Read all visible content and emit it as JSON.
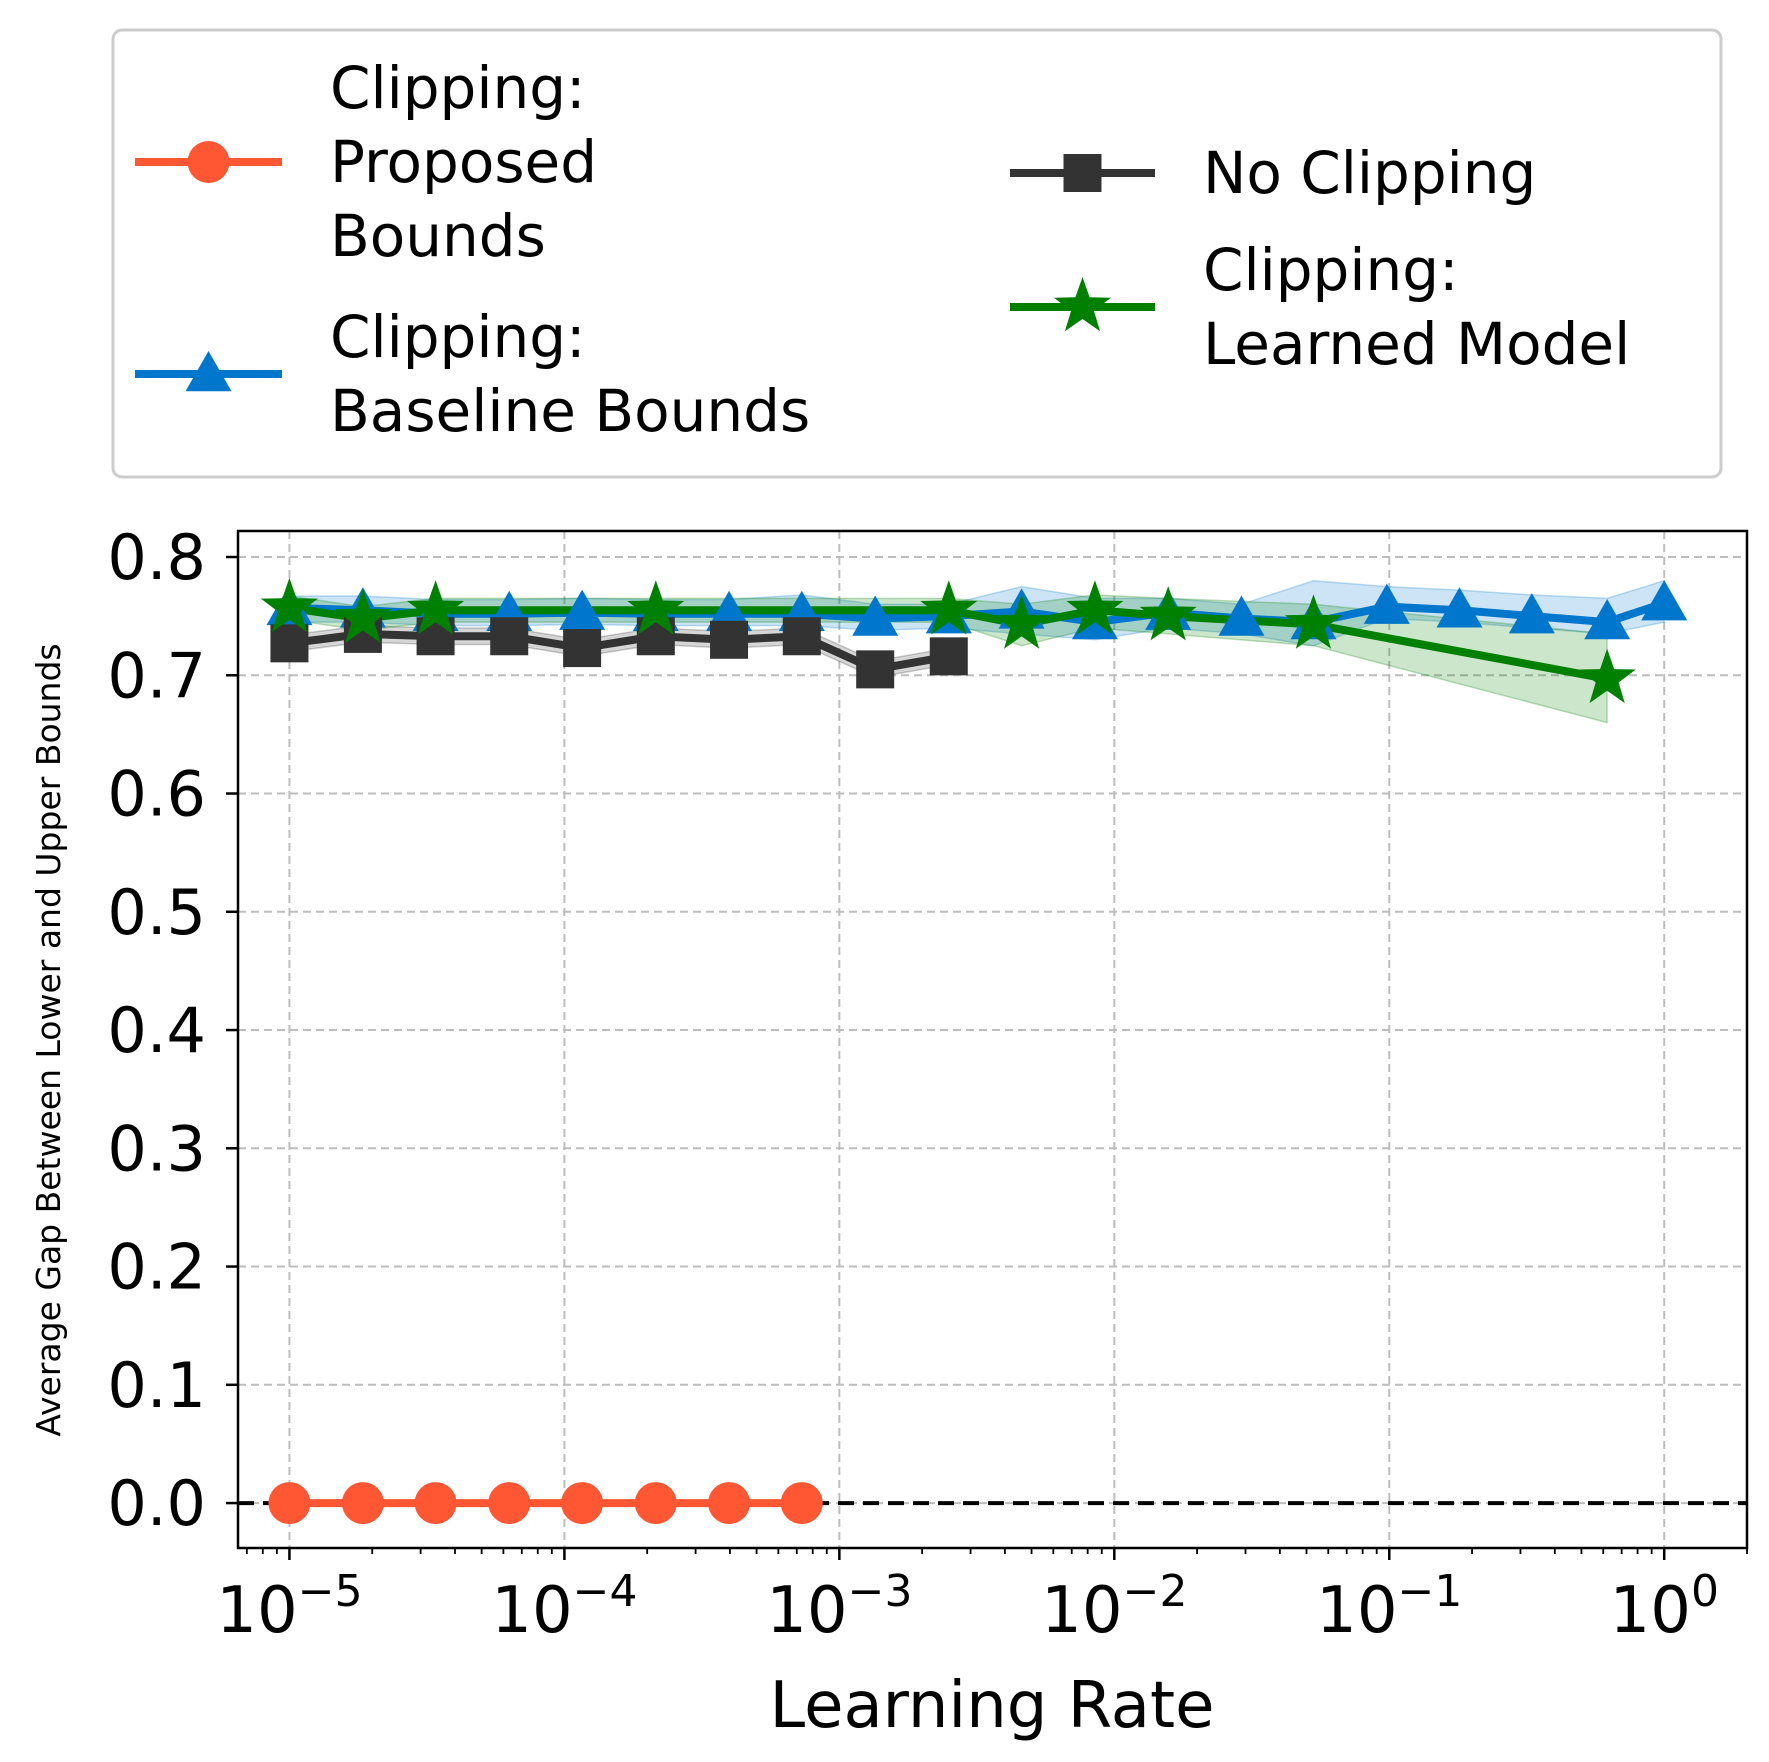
{
  "chart_data": {
    "type": "line",
    "title": "",
    "xlabel": "Learning Rate",
    "ylabel": "Average Gap Between Lower and Upper Bounds",
    "xscale": "log",
    "xlim": [
      6.5e-06,
      2.0
    ],
    "ylim": [
      -0.038,
      0.822
    ],
    "grid": true,
    "legend_position": "top (outside plot, 2 columns)",
    "x_tick_labels": [
      {
        "value": 1e-05,
        "base": "10",
        "exp": "−5"
      },
      {
        "value": 0.0001,
        "base": "10",
        "exp": "−4"
      },
      {
        "value": 0.001,
        "base": "10",
        "exp": "−3"
      },
      {
        "value": 0.01,
        "base": "10",
        "exp": "−2"
      },
      {
        "value": 0.1,
        "base": "10",
        "exp": "−1"
      },
      {
        "value": 1,
        "base": "10",
        "exp": "0"
      }
    ],
    "y_ticks": [
      0.0,
      0.1,
      0.2,
      0.3,
      0.4,
      0.5,
      0.6,
      0.7,
      0.8
    ],
    "y_tick_labels": [
      "0.0",
      "0.1",
      "0.2",
      "0.3",
      "0.4",
      "0.5",
      "0.6",
      "0.7",
      "0.8"
    ],
    "reference_line": {
      "y": 0.0,
      "style": "dashed",
      "color": "#000000"
    },
    "series": [
      {
        "name": "Clipping: Proposed Bounds",
        "legend_lines": [
          "Clipping:",
          "Proposed",
          "Bounds"
        ],
        "color": "#FF5733",
        "marker": "circle",
        "x": [
          1e-05,
          1.85e-05,
          3.4e-05,
          6.3e-05,
          0.000116,
          0.000215,
          0.000397,
          0.00073
        ],
        "y": [
          0.0,
          0.0,
          0.0,
          0.0,
          0.0,
          0.0,
          0.0,
          0.0
        ]
      },
      {
        "name": "Clipping: Baseline Bounds",
        "legend_lines": [
          "Clipping:",
          "Baseline Bounds"
        ],
        "color": "#0077CC",
        "marker": "triangle",
        "x": [
          1e-05,
          1.85e-05,
          3.4e-05,
          6.3e-05,
          0.000116,
          0.000215,
          0.000397,
          0.00073,
          0.00135,
          0.0025,
          0.0046,
          0.0085,
          0.0157,
          0.029,
          0.053,
          0.098,
          0.18,
          0.33,
          0.62,
          1.0
        ],
        "y": [
          0.757,
          0.755,
          0.752,
          0.752,
          0.753,
          0.752,
          0.752,
          0.752,
          0.748,
          0.75,
          0.754,
          0.745,
          0.753,
          0.748,
          0.745,
          0.758,
          0.755,
          0.75,
          0.745,
          0.761
        ],
        "band_low": [
          0.745,
          0.745,
          0.742,
          0.742,
          0.743,
          0.742,
          0.742,
          0.742,
          0.738,
          0.74,
          0.735,
          0.73,
          0.74,
          0.735,
          0.725,
          0.748,
          0.745,
          0.74,
          0.735,
          0.745
        ],
        "band_high": [
          0.767,
          0.767,
          0.764,
          0.764,
          0.765,
          0.764,
          0.764,
          0.768,
          0.76,
          0.76,
          0.775,
          0.765,
          0.765,
          0.76,
          0.78,
          0.775,
          0.772,
          0.768,
          0.765,
          0.78
        ]
      },
      {
        "name": "No Clipping",
        "legend_lines": [
          "No Clipping"
        ],
        "color": "#333333",
        "marker": "square",
        "x": [
          1e-05,
          1.85e-05,
          3.4e-05,
          6.3e-05,
          0.000116,
          0.000215,
          0.000397,
          0.00073,
          0.00135,
          0.0025
        ],
        "y": [
          0.727,
          0.735,
          0.733,
          0.733,
          0.723,
          0.733,
          0.73,
          0.733,
          0.705,
          0.716
        ],
        "band_low": [
          0.72,
          0.728,
          0.726,
          0.726,
          0.716,
          0.726,
          0.723,
          0.726,
          0.698,
          0.709
        ],
        "band_high": [
          0.734,
          0.742,
          0.74,
          0.74,
          0.73,
          0.74,
          0.737,
          0.74,
          0.712,
          0.723
        ]
      },
      {
        "name": "Clipping: Learned Model",
        "legend_lines": [
          "Clipping:",
          "Learned Model"
        ],
        "color": "#008000",
        "marker": "star",
        "x": [
          1e-05,
          1.85e-05,
          3.4e-05,
          0.000215,
          0.0025,
          0.0046,
          0.0085,
          0.0157,
          0.053,
          0.62
        ],
        "y": [
          0.757,
          0.748,
          0.755,
          0.755,
          0.755,
          0.743,
          0.755,
          0.75,
          0.743,
          0.697
        ],
        "band_low": [
          0.747,
          0.738,
          0.745,
          0.745,
          0.745,
          0.725,
          0.74,
          0.735,
          0.725,
          0.66
        ],
        "band_high": [
          0.767,
          0.758,
          0.765,
          0.765,
          0.765,
          0.76,
          0.768,
          0.765,
          0.76,
          0.735
        ]
      }
    ]
  }
}
